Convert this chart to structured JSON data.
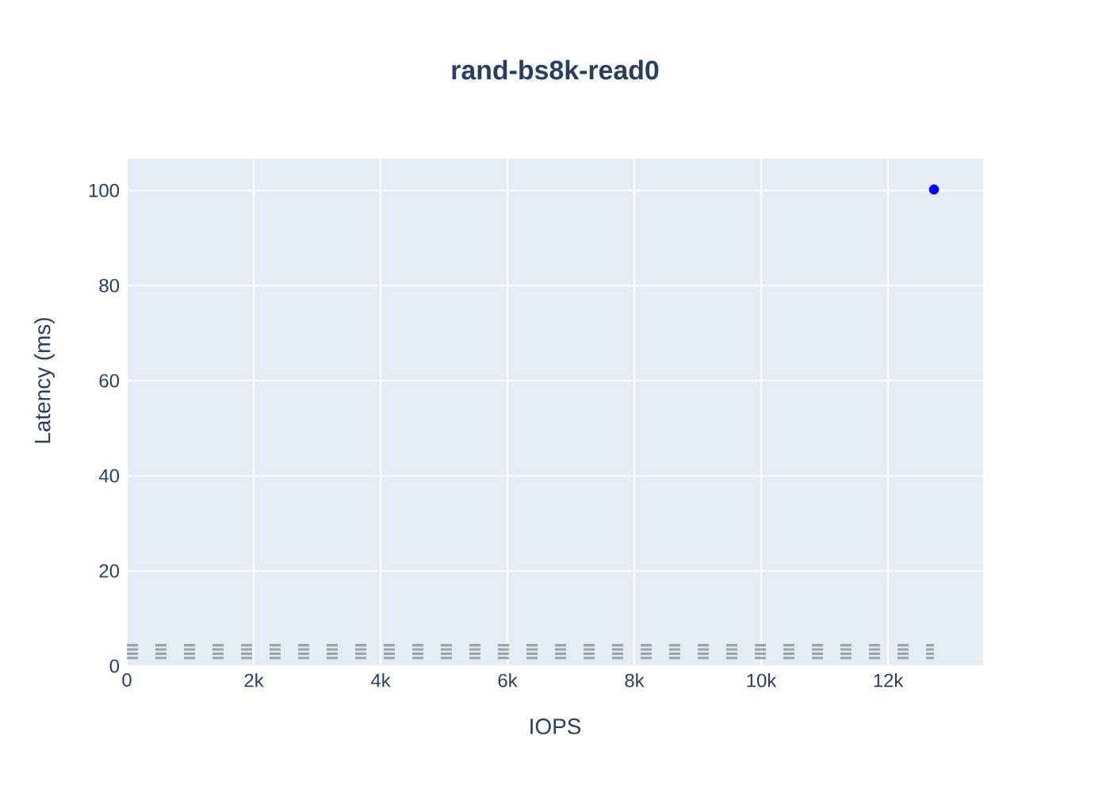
{
  "chart_data": {
    "type": "scatter",
    "title": "rand-bs8k-read0",
    "xlabel": "IOPS",
    "ylabel": "Latency (ms)",
    "marker": "circle",
    "x": [
      0,
      12725
    ],
    "series": [
      {
        "values": [
          null,
          100.2
        ],
        "color": "#0000ff"
      },
      {
        "type": "line",
        "values": [
          4.4,
          4.4
        ],
        "color": "#9ea2a9",
        "marker": "none",
        "line_style": "dashed"
      },
      {
        "type": "line",
        "values": [
          3.5,
          3.5
        ],
        "color": "#9ea2a9",
        "marker": "none",
        "line_style": "dashed"
      },
      {
        "type": "line",
        "values": [
          2.6,
          2.6
        ],
        "color": "#9ea2a9",
        "marker": "none",
        "line_style": "dashed"
      },
      {
        "type": "line",
        "values": [
          1.7,
          1.7
        ],
        "color": "#9ea2a9",
        "marker": "none",
        "line_style": "dashed"
      }
    ],
    "xlim": [
      0,
      13500
    ],
    "ylim": [
      0,
      106.7
    ],
    "xticks": [
      0,
      {
        "value": 2000,
        "label": "2k"
      },
      {
        "value": 4000,
        "label": "4k"
      },
      {
        "value": 6000,
        "label": "6k"
      },
      {
        "value": 8000,
        "label": "8k"
      },
      {
        "value": 10000,
        "label": "10k"
      },
      {
        "value": 12000,
        "label": "12k"
      }
    ],
    "yticks": [
      0,
      20,
      40,
      60,
      80,
      100
    ],
    "grid": true
  }
}
